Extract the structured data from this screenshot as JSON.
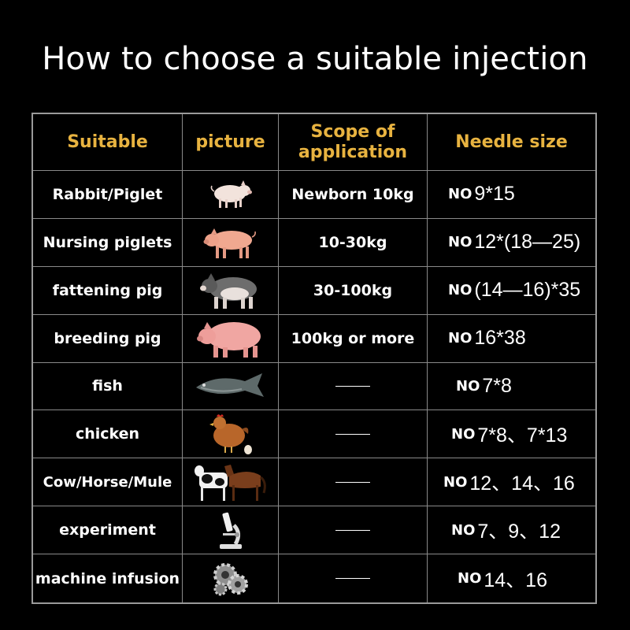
{
  "title": "How to choose a suitable injection",
  "headers": {
    "suitable": "Suitable",
    "picture": "picture",
    "scope_line1": "Scope of",
    "scope_line2": "application",
    "needle": "Needle size"
  },
  "rows": [
    {
      "name": "Rabbit/Piglet",
      "icon": "piglet-icon",
      "scope": "Newborn 10kg",
      "no": "NO",
      "needle": "9*15"
    },
    {
      "name": "Nursing piglets",
      "icon": "nursing-piglet-icon",
      "scope": "10-30kg",
      "no": "NO",
      "needle": "12*(18—25)"
    },
    {
      "name": "fattening pig",
      "icon": "fattening-pig-icon",
      "scope": "30-100kg",
      "no": "NO",
      "needle": "(14—16)*35"
    },
    {
      "name": "breeding pig",
      "icon": "breeding-pig-icon",
      "scope": "100kg or more",
      "no": "NO",
      "needle": "16*38"
    },
    {
      "name": "fish",
      "icon": "fish-icon",
      "scope": "",
      "no": "NO",
      "needle": "7*8"
    },
    {
      "name": "chicken",
      "icon": "chicken-icon",
      "scope": "",
      "no": "NO",
      "needle": "7*8、7*13"
    },
    {
      "name": "Cow/Horse/Mule",
      "icon": "cow-horse-icon",
      "scope": "",
      "no": "NO",
      "needle": "12、14、16"
    },
    {
      "name": "experiment",
      "icon": "microscope-icon",
      "scope": "",
      "no": "NO",
      "needle": "7、9、12"
    },
    {
      "name": "machine infusion",
      "icon": "gears-icon",
      "scope": "",
      "no": "NO",
      "needle": "14、16"
    }
  ],
  "colors": {
    "background": "#000000",
    "header_text": "#e8b340",
    "grid_line": "#8a8a8a"
  }
}
